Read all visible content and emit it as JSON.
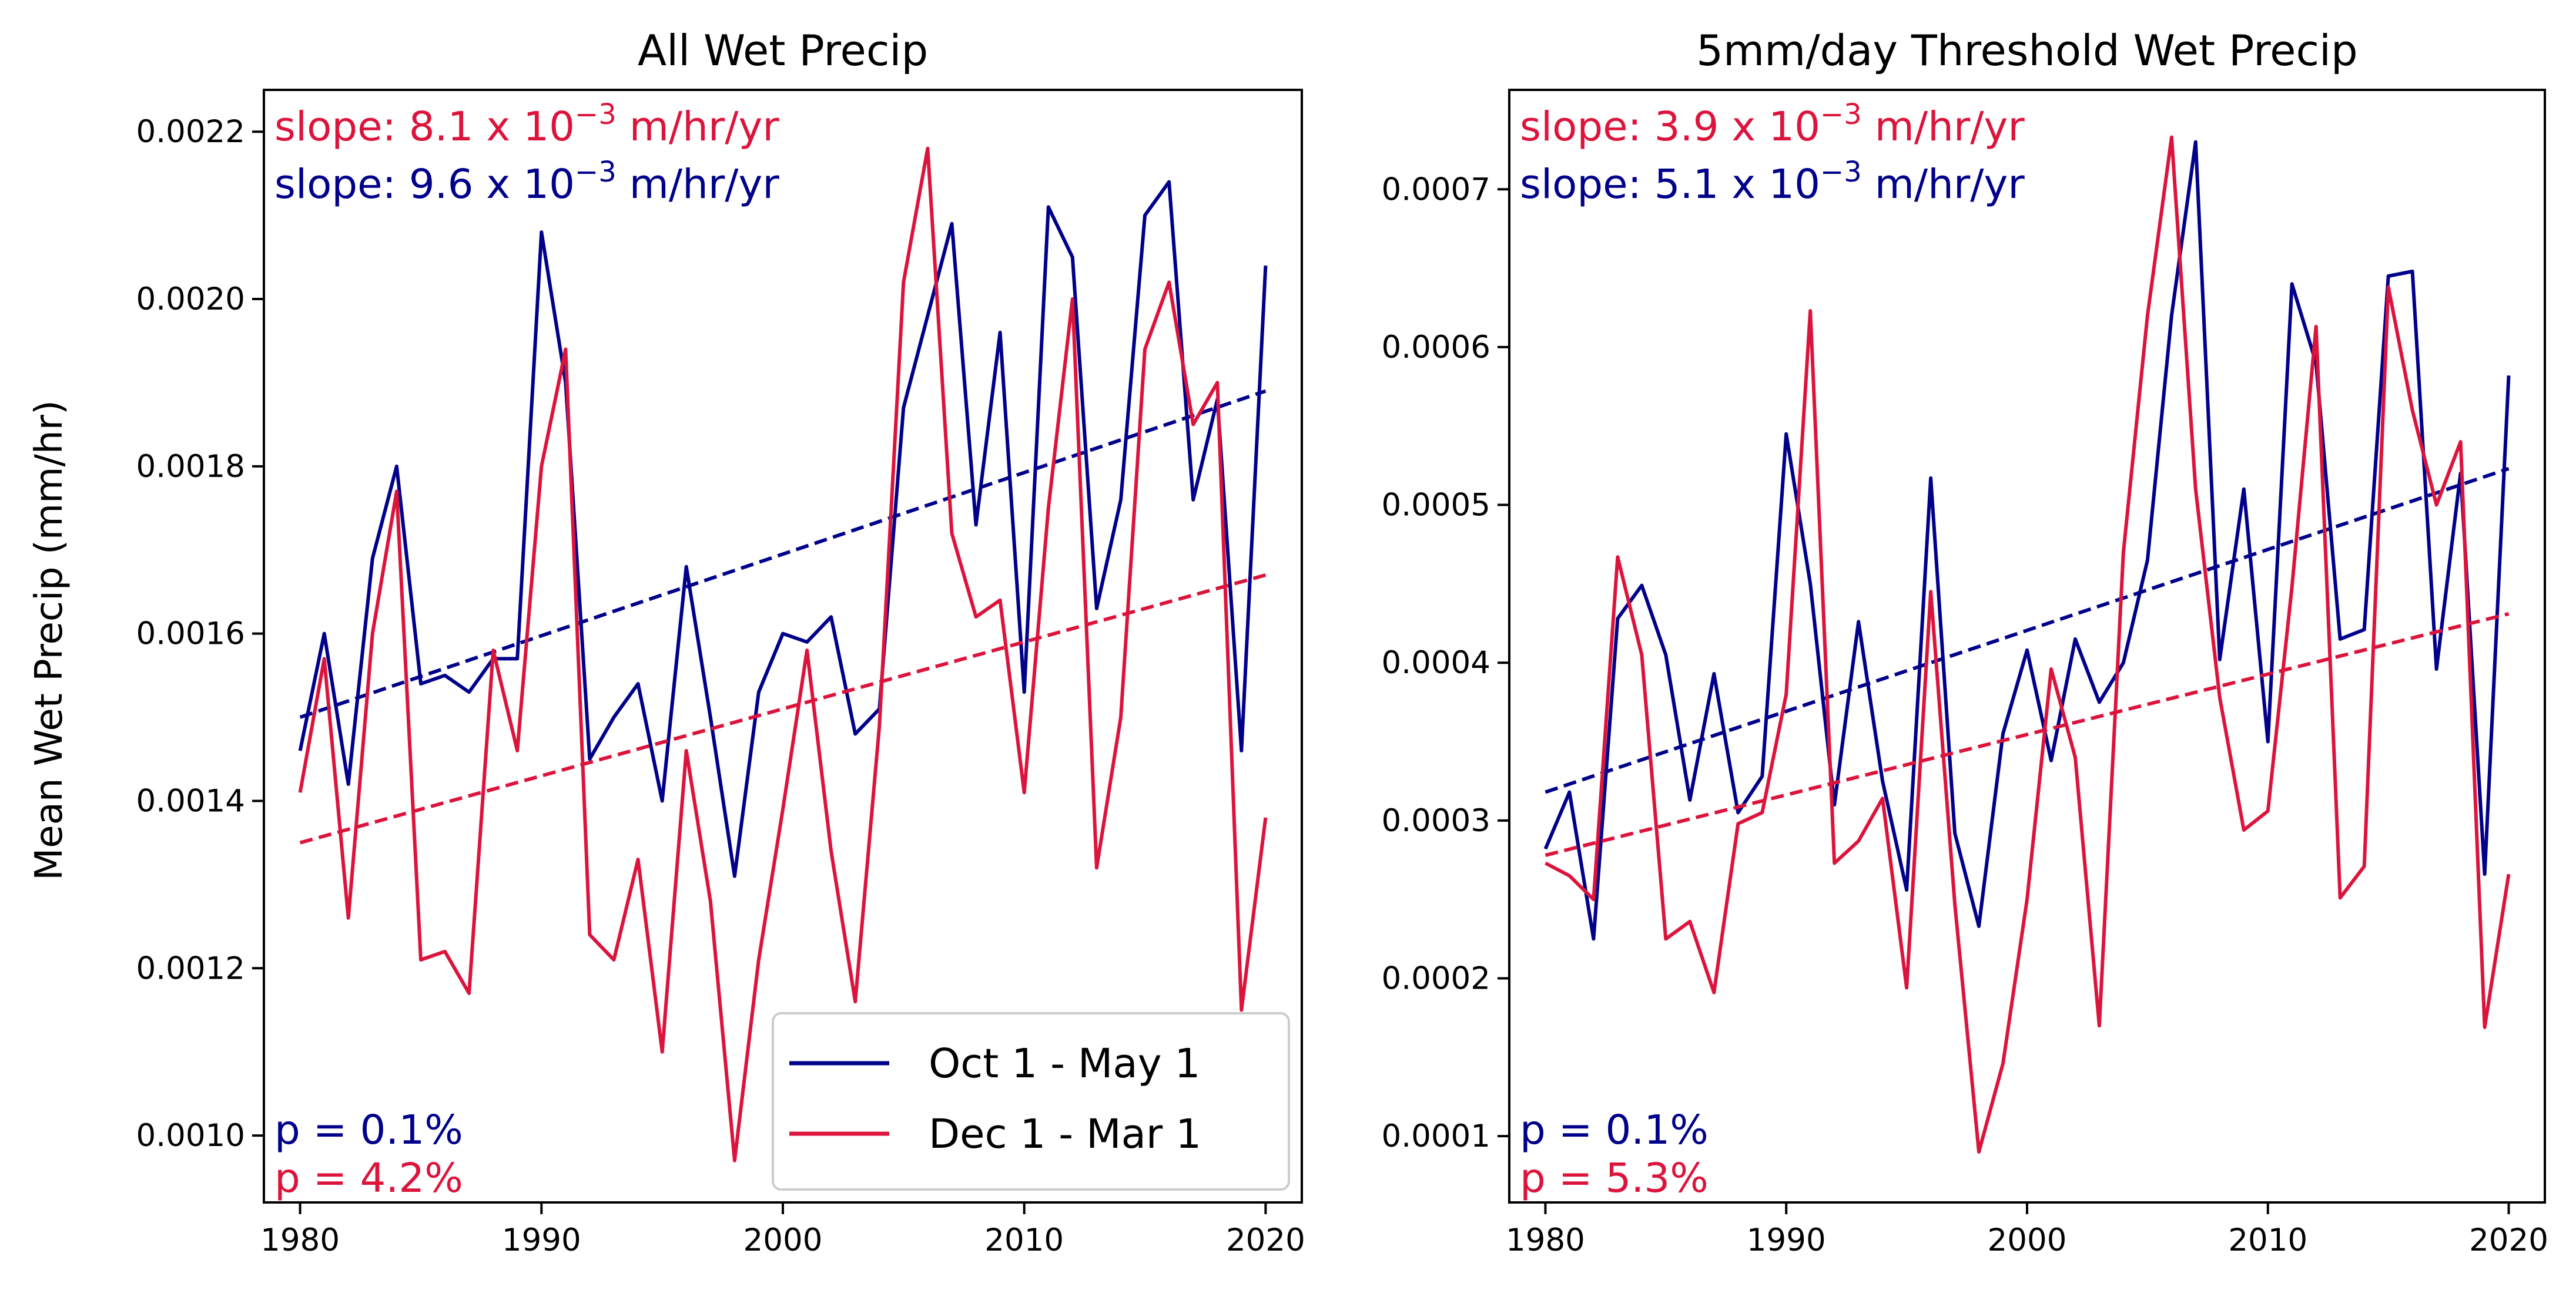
{
  "ylabel": "Mean Wet Precip (mm/hr)",
  "colors": {
    "oct_may": "#00008B",
    "dec_mar": "#DC143C"
  },
  "legend": {
    "placement": "lower-right",
    "entries": [
      {
        "label": "Oct 1 - May 1",
        "color": "#00008B"
      },
      {
        "label": "Dec 1 - Mar 1",
        "color": "#DC143C"
      }
    ]
  },
  "chart_data": [
    {
      "type": "line",
      "title": "All Wet Precip",
      "ylabel": "Mean Wet Precip (mm/hr)",
      "xlim": [
        1978.5,
        2021.5
      ],
      "ylim": [
        0.00092,
        0.00225
      ],
      "xticks": [
        1980,
        1990,
        2000,
        2010,
        2020
      ],
      "yticks": [
        0.001,
        0.0012,
        0.0014,
        0.0016,
        0.0018,
        0.002,
        0.0022
      ],
      "ytick_labels": [
        "0.0010",
        "0.0012",
        "0.0014",
        "0.0016",
        "0.0018",
        "0.0020",
        "0.0022"
      ],
      "legend": "lower-right",
      "annotations": {
        "slope_red_text": "slope: 8.1 x 10",
        "slope_red_exp": "−3",
        "slope_red_unit": " m/hr/yr",
        "slope_blue_text": "slope: 9.6 x 10",
        "slope_blue_exp": "−3",
        "slope_blue_unit": " m/hr/yr",
        "p_blue": "p = 0.1%",
        "p_red": "p = 4.2%"
      },
      "x": [
        1980,
        1981,
        1982,
        1983,
        1984,
        1985,
        1986,
        1987,
        1988,
        1989,
        1990,
        1991,
        1992,
        1993,
        1994,
        1995,
        1996,
        1997,
        1998,
        1999,
        2000,
        2001,
        2002,
        2003,
        2004,
        2005,
        2006,
        2007,
        2008,
        2009,
        2010,
        2011,
        2012,
        2013,
        2014,
        2015,
        2016,
        2017,
        2018,
        2019,
        2020
      ],
      "series": [
        {
          "name": "Oct 1 - May 1",
          "color": "#00008B",
          "values": [
            0.00146,
            0.0016,
            0.00142,
            0.00169,
            0.0018,
            0.00154,
            0.00155,
            0.00153,
            0.00157,
            0.00157,
            0.00208,
            0.0019,
            0.00145,
            0.0015,
            0.00154,
            0.0014,
            0.00168,
            0.0015,
            0.00131,
            0.00153,
            0.0016,
            0.00159,
            0.00162,
            0.00148,
            0.00151,
            0.00187,
            0.00198,
            0.00209,
            0.00173,
            0.00196,
            0.00153,
            0.00211,
            0.00205,
            0.00163,
            0.00176,
            0.0021,
            0.00214,
            0.00176,
            0.00188,
            0.00146,
            0.00204
          ],
          "trend": [
            0.0015,
            0.00189
          ]
        },
        {
          "name": "Dec 1 - Mar 1",
          "color": "#DC143C",
          "values": [
            0.00141,
            0.00157,
            0.00126,
            0.0016,
            0.00177,
            0.00121,
            0.00122,
            0.00117,
            0.00158,
            0.00146,
            0.0018,
            0.00194,
            0.00124,
            0.00121,
            0.00133,
            0.0011,
            0.00146,
            0.00128,
            0.00097,
            0.00121,
            0.00139,
            0.00158,
            0.00134,
            0.00116,
            0.00149,
            0.00202,
            0.00218,
            0.00172,
            0.00162,
            0.00164,
            0.00141,
            0.00175,
            0.002,
            0.00132,
            0.0015,
            0.00194,
            0.00202,
            0.00185,
            0.0019,
            0.00115,
            0.00138
          ],
          "trend": [
            0.00135,
            0.00167
          ]
        }
      ]
    },
    {
      "type": "line",
      "title": "5mm/day Threshold Wet Precip",
      "xlim": [
        1978.5,
        2021.5
      ],
      "ylim": [
        5.8e-05,
        0.000763
      ],
      "xticks": [
        1980,
        1990,
        2000,
        2010,
        2020
      ],
      "yticks": [
        0.0001,
        0.0002,
        0.0003,
        0.0004,
        0.0005,
        0.0006,
        0.0007
      ],
      "ytick_labels": [
        "0.0001",
        "0.0002",
        "0.0003",
        "0.0004",
        "0.0005",
        "0.0006",
        "0.0007"
      ],
      "annotations": {
        "slope_red_text": "slope: 3.9 x 10",
        "slope_red_exp": "−3",
        "slope_red_unit": " m/hr/yr",
        "slope_blue_text": "slope: 5.1 x 10",
        "slope_blue_exp": "−3",
        "slope_blue_unit": " m/hr/yr",
        "p_blue": "p = 0.1%",
        "p_red": "p = 5.3%"
      },
      "x": [
        1980,
        1981,
        1982,
        1983,
        1984,
        1985,
        1986,
        1987,
        1988,
        1989,
        1990,
        1991,
        1992,
        1993,
        1994,
        1995,
        1996,
        1997,
        1998,
        1999,
        2000,
        2001,
        2002,
        2003,
        2004,
        2005,
        2006,
        2007,
        2008,
        2009,
        2010,
        2011,
        2012,
        2013,
        2014,
        2015,
        2016,
        2017,
        2018,
        2019,
        2020
      ],
      "series": [
        {
          "name": "Oct 1 - May 1",
          "color": "#00008B",
          "values": [
            0.000282,
            0.000318,
            0.000225,
            0.000428,
            0.000449,
            0.000405,
            0.000313,
            0.000393,
            0.000305,
            0.000328,
            0.000545,
            0.00045,
            0.00031,
            0.000426,
            0.000325,
            0.000256,
            0.000517,
            0.000292,
            0.000233,
            0.000355,
            0.000408,
            0.000338,
            0.000415,
            0.000375,
            0.0004,
            0.000465,
            0.00062,
            0.00073,
            0.000402,
            0.00051,
            0.00035,
            0.00064,
            0.00059,
            0.000415,
            0.000421,
            0.000645,
            0.000648,
            0.000396,
            0.00052,
            0.000266,
            0.000582
          ],
          "trend": [
            0.000318,
            0.000523
          ]
        },
        {
          "name": "Dec 1 - Mar 1",
          "color": "#DC143C",
          "values": [
            0.000273,
            0.000265,
            0.00025,
            0.000467,
            0.000405,
            0.000225,
            0.000236,
            0.000191,
            0.000298,
            0.000305,
            0.00038,
            0.000623,
            0.000273,
            0.000287,
            0.000314,
            0.000194,
            0.000445,
            0.000247,
            9e-05,
            0.000146,
            0.00025,
            0.000396,
            0.00034,
            0.00017,
            0.00047,
            0.00062,
            0.000733,
            0.00051,
            0.000378,
            0.000294,
            0.000306,
            0.000448,
            0.000613,
            0.000251,
            0.000271,
            0.000638,
            0.00056,
            0.0005,
            0.00054,
            0.000169,
            0.000266
          ],
          "trend": [
            0.000278,
            0.000431
          ]
        }
      ]
    }
  ]
}
